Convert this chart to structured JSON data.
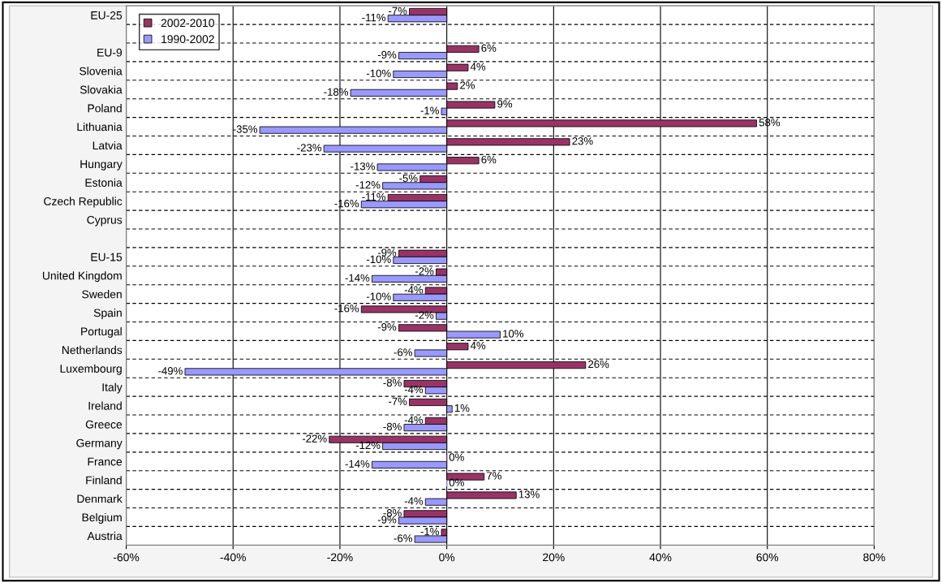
{
  "chart_data": {
    "type": "bar",
    "orientation": "horizontal",
    "categories": [
      "EU-25",
      null,
      "EU-9",
      "Slovenia",
      "Slovakia",
      "Poland",
      "Lithuania",
      "Latvia",
      "Hungary",
      "Estonia",
      "Czech Republic",
      "Cyprus",
      null,
      "EU-15",
      "United Kingdom",
      "Sweden",
      "Spain",
      "Portugal",
      "Netherlands",
      "Luxembourg",
      "Italy",
      "Ireland",
      "Greece",
      "Germany",
      "France",
      "Finland",
      "Denmark",
      "Belgium",
      "Austria"
    ],
    "series": [
      {
        "name": "2002-2010",
        "color": "#993366",
        "values": [
          -7,
          null,
          6,
          4,
          2,
          9,
          58,
          23,
          6,
          -5,
          -11,
          null,
          null,
          -9,
          -2,
          -4,
          -16,
          -9,
          4,
          26,
          -8,
          -7,
          -4,
          -22,
          0,
          7,
          13,
          -8,
          -1
        ],
        "value_labels": [
          "-7%",
          null,
          "6%",
          "4%",
          "2%",
          "9%",
          "58%",
          "23%",
          "6%",
          "-5%",
          "-11%",
          null,
          null,
          "-9%",
          "-2%",
          "-4%",
          "-16%",
          "-9%",
          "4%",
          "26%",
          "-8%",
          "-7%",
          "-4%",
          "-22%",
          "0%",
          "7%",
          "13%",
          "-8%",
          "-1%"
        ]
      },
      {
        "name": "1990-2002",
        "color": "#9999ff",
        "values": [
          -11,
          null,
          -9,
          -10,
          -18,
          -1,
          -35,
          -23,
          -13,
          -12,
          -16,
          null,
          null,
          -10,
          -14,
          -10,
          -2,
          10,
          -6,
          -49,
          -4,
          1,
          -8,
          -12,
          -14,
          0,
          -4,
          -9,
          -6
        ],
        "value_labels": [
          "-11%",
          null,
          "-9%",
          "-10%",
          "-18%",
          "-1%",
          "-35%",
          "-23%",
          "-13%",
          "-12%",
          "-16%",
          null,
          null,
          "-10%",
          "-14%",
          "-10%",
          "-2%",
          "10%",
          "-6%",
          "-49%",
          "-4%",
          "1%",
          "-8%",
          "-12%",
          "-14%",
          "0%",
          "-4%",
          "-9%",
          "-6%"
        ]
      }
    ],
    "xlim": [
      -60,
      80
    ],
    "xticks": [
      {
        "value": -60,
        "label": "-60%"
      },
      {
        "value": -40,
        "label": "-40%"
      },
      {
        "value": -20,
        "label": "-20%"
      },
      {
        "value": 0,
        "label": "0%"
      },
      {
        "value": 20,
        "label": "20%"
      },
      {
        "value": 40,
        "label": "40%"
      },
      {
        "value": 60,
        "label": "60%"
      },
      {
        "value": 80,
        "label": "80%"
      }
    ],
    "grid": true,
    "legend": "top left"
  }
}
